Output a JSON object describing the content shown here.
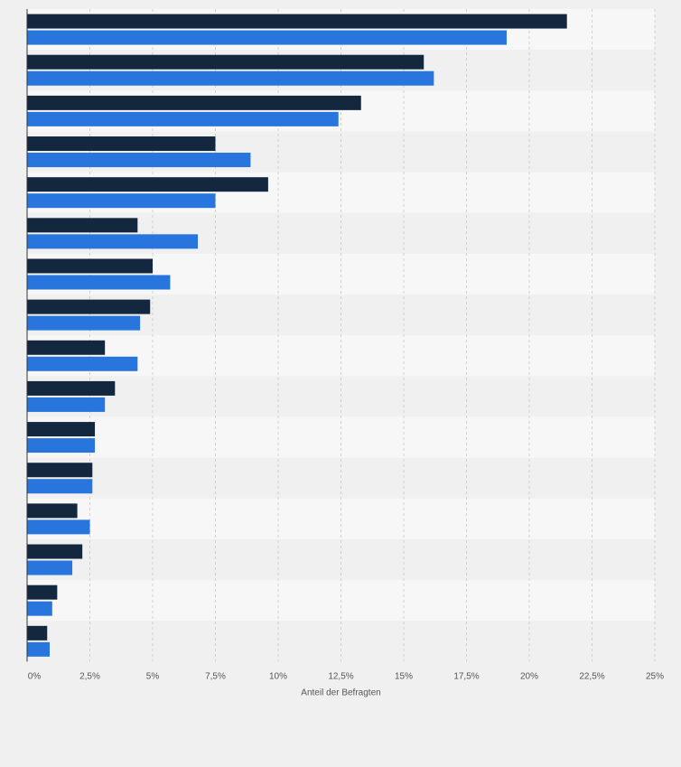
{
  "chart_data": {
    "type": "bar",
    "orientation": "horizontal",
    "xlabel": "Anteil der Befragten",
    "xlim": [
      0,
      25
    ],
    "ticks": [
      {
        "value": 0,
        "label": "0%"
      },
      {
        "value": 2.5,
        "label": "2,5%"
      },
      {
        "value": 5,
        "label": "5%"
      },
      {
        "value": 7.5,
        "label": "7,5%"
      },
      {
        "value": 10,
        "label": "10%"
      },
      {
        "value": 12.5,
        "label": "12,5%"
      },
      {
        "value": 15,
        "label": "15%"
      },
      {
        "value": 17.5,
        "label": "17,5%"
      },
      {
        "value": 20,
        "label": "20%"
      },
      {
        "value": 22.5,
        "label": "22,5%"
      },
      {
        "value": 25,
        "label": "25%"
      }
    ],
    "grid": true,
    "legend": "none",
    "colors": {
      "series_1": "#13273f",
      "series_2": "#2876dd",
      "band_light": "#f7f7f7",
      "band_dark": "#f0f0f0",
      "grid": "#d0d0d0",
      "axis": "#333333"
    },
    "series": [
      {
        "values": [
          21.5,
          15.8,
          13.3,
          7.5,
          9.6,
          4.4,
          5.0,
          4.9,
          3.1,
          3.5,
          2.7,
          2.6,
          2.0,
          2.2,
          1.2,
          0.8
        ]
      },
      {
        "values": [
          19.1,
          16.2,
          12.4,
          8.9,
          7.5,
          6.8,
          5.7,
          4.5,
          4.4,
          3.1,
          2.7,
          2.6,
          2.5,
          1.8,
          1.0,
          0.9
        ]
      }
    ]
  }
}
